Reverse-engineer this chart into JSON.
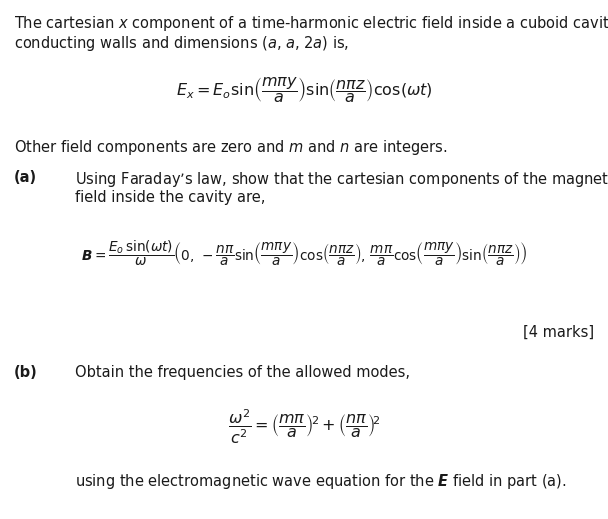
{
  "background_color": "#ffffff",
  "text_color": "#1a1a1a",
  "fig_width": 6.08,
  "fig_height": 5.19,
  "dpi": 100,
  "intro_line1": "The cartesian $x$ component of a time-harmonic electric field inside a cuboid cavity with",
  "intro_line2": "conducting walls and dimensions ($a$, $a$, $2a$) is,",
  "eq1": "$E_x = E_o \\sin\\!\\left(\\dfrac{m\\pi y}{a}\\right) \\sin\\!\\left(\\dfrac{n\\pi z}{a}\\right) \\cos(\\omega t)$",
  "other_field": "Other field components are zero and $m$ and $n$ are integers.",
  "part_a_label": "(a)",
  "part_a_text1": "Using Faraday’s law, show that the cartesian components of the magnetic $\\boldsymbol{B}$",
  "part_a_text2": "field inside the cavity are,",
  "eq2": "$\\boldsymbol{B} = \\dfrac{E_o\\, \\sin(\\omega t)}{\\omega} \\left(0,\\, -\\dfrac{n\\pi}{a}\\sin\\!\\left(\\dfrac{m\\pi y}{a}\\right)\\cos\\!\\left(\\dfrac{n\\pi z}{a}\\right),\\, \\dfrac{m\\pi}{a}\\cos\\!\\left(\\dfrac{m\\pi y}{a}\\right)\\sin\\!\\left(\\dfrac{n\\pi z}{a}\\right)\\right)$",
  "marks": "[4 marks]",
  "part_b_label": "(b)",
  "part_b_text": "Obtain the frequencies of the allowed modes,",
  "eq3": "$\\dfrac{\\omega^2}{c^2} = \\left(\\dfrac{m\\pi}{a}\\right)^{\\!2} + \\left(\\dfrac{n\\pi}{a}\\right)^{\\!2}$",
  "final_text": "using the electromagnetic wave equation for the $\\boldsymbol{E}$ field in part (a).",
  "font_size_body": 10.5,
  "font_size_eq": 11.5,
  "font_size_marks": 10.5
}
